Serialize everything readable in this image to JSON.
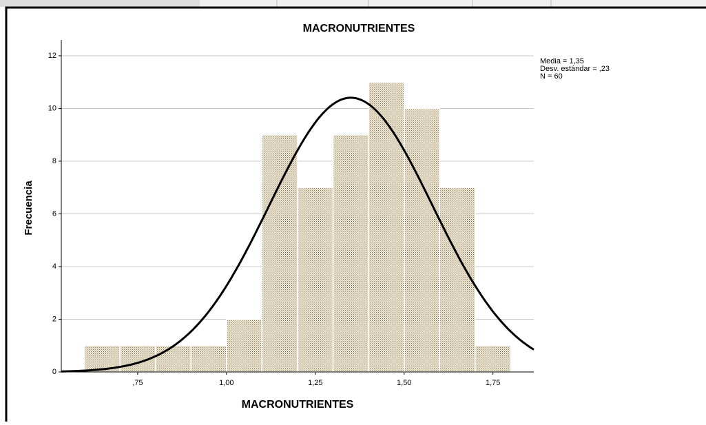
{
  "chart_data": {
    "type": "histogram",
    "title": "MACRONUTRIENTES",
    "xlabel": "MACRONUTRIENTES",
    "ylabel": "Frecuencia",
    "bins": [
      0.6,
      0.7,
      0.8,
      0.9,
      1.0,
      1.1,
      1.2,
      1.3,
      1.4,
      1.5,
      1.6,
      1.7,
      1.8
    ],
    "counts": [
      1,
      1,
      1,
      1,
      2,
      9,
      7,
      9,
      11,
      10,
      7,
      1
    ],
    "color": "#e6dcc4",
    "xlim": [
      0.535,
      1.865
    ],
    "ylim": [
      0,
      12.6
    ],
    "xticks": [
      {
        "value": 0.75,
        "label": ",75"
      },
      {
        "value": 1.0,
        "label": "1,00"
      },
      {
        "value": 1.25,
        "label": "1,25"
      },
      {
        "value": 1.5,
        "label": "1,50"
      },
      {
        "value": 1.75,
        "label": "1,75"
      }
    ],
    "yticks": [
      0,
      2,
      4,
      6,
      8,
      10,
      12
    ],
    "grid": true,
    "stats": [
      {
        "label": "Media = 1,35",
        "value": 1.35
      },
      {
        "label": "Desv. estándar = ,23",
        "value": 0.23
      },
      {
        "label": "N = 60",
        "value": 60
      }
    ]
  }
}
